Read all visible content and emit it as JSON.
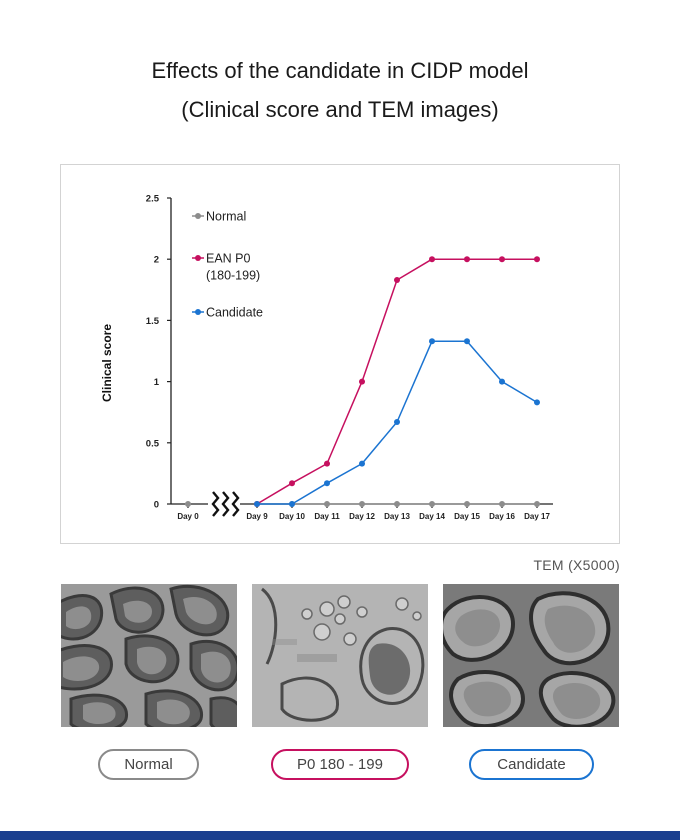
{
  "title_line1": "Effects of the candidate in CIDP model",
  "title_line2": "(Clinical score and TEM images)",
  "tem_label": "TEM (X5000)",
  "image_labels": [
    "Normal",
    "P0 180 - 199",
    "Candidate"
  ],
  "chart_data": {
    "type": "line",
    "title": "",
    "xlabel": "",
    "ylabel": "Clinical score",
    "categories": [
      "Day 0",
      "Day 9",
      "Day 10",
      "Day 11",
      "Day 12",
      "Day 13",
      "Day 14",
      "Day 15",
      "Day 16",
      "Day 17"
    ],
    "axis_break_between": [
      "Day 0",
      "Day 9"
    ],
    "yticks": [
      "0",
      "0.5",
      "1",
      "1.5",
      "2",
      "2.5"
    ],
    "ylim": [
      0,
      2.5
    ],
    "grid": false,
    "legend_position": "top-left",
    "series": [
      {
        "name": "Normal",
        "color": "#8c8c8c",
        "values": [
          0,
          0,
          0,
          0,
          0,
          0,
          0,
          0,
          0,
          0
        ]
      },
      {
        "name": "EAN P0 (180-199)",
        "legend_lines": [
          "EAN P0",
          "(180-199)"
        ],
        "color": "#c6105f",
        "values": [
          null,
          0,
          0.17,
          0.33,
          1.0,
          1.83,
          2.0,
          2.0,
          2.0,
          2.0
        ]
      },
      {
        "name": "Candidate",
        "color": "#1b74d1",
        "values": [
          null,
          0,
          0,
          0.17,
          0.33,
          0.67,
          1.33,
          1.33,
          1.0,
          0.83
        ]
      }
    ]
  }
}
